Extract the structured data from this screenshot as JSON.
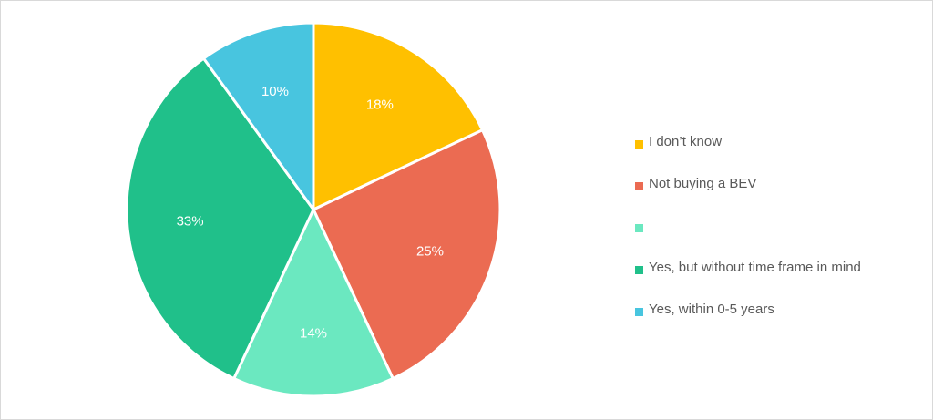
{
  "chart_data": {
    "type": "pie",
    "title": "",
    "legend_position": "right",
    "slices": [
      {
        "label": "I don’t know",
        "value": 18,
        "display": "18%",
        "color": "#ffc000"
      },
      {
        "label": "Not buying a BEV",
        "value": 25,
        "display": "25%",
        "color": "#eb6b52"
      },
      {
        "label": "",
        "value": 14,
        "display": "14%",
        "color": "#6be8c0"
      },
      {
        "label": "Yes, but without time frame in mind",
        "value": 33,
        "display": "33%",
        "color": "#20c08a"
      },
      {
        "label": "Yes, within 0-5 years",
        "value": 10,
        "display": "10%",
        "color": "#48c5df"
      }
    ]
  }
}
